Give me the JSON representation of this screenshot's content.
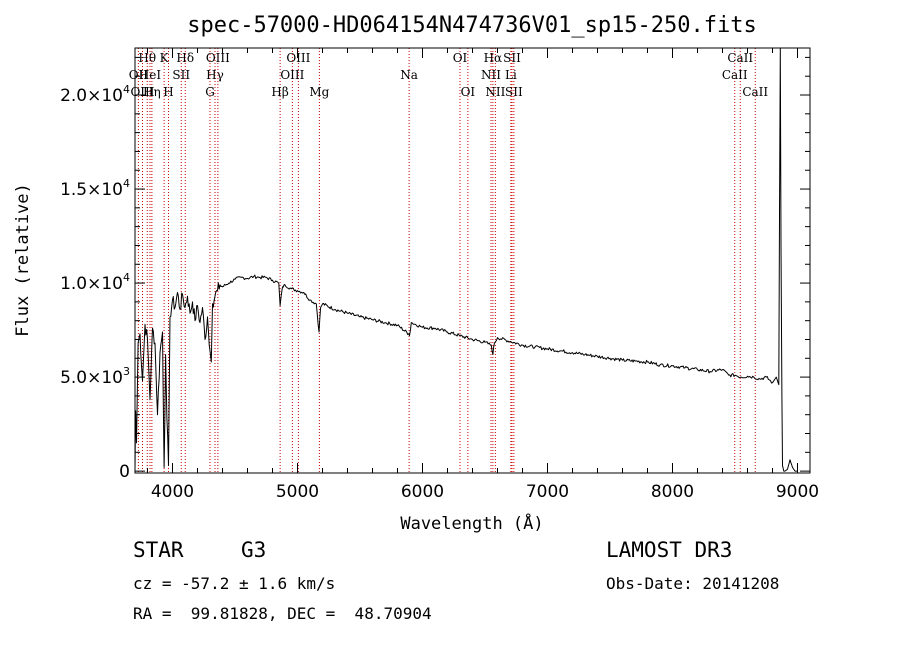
{
  "chart_data": {
    "type": "line",
    "title": "spec-57000-HD064154N474736V01_sp15-250.fits",
    "xlabel": "Wavelength (Å)",
    "ylabel": "Flux (relative)",
    "xlim": [
      3700,
      9100
    ],
    "ylim": [
      -100,
      22500
    ],
    "xticks": [
      4000,
      5000,
      6000,
      7000,
      8000,
      9000
    ],
    "yticks": [
      {
        "value": 0,
        "label": "0"
      },
      {
        "value": 5000,
        "label": "5.0×10",
        "exp": "3"
      },
      {
        "value": 10000,
        "label": "1.0×10",
        "exp": "4"
      },
      {
        "value": 15000,
        "label": "1.5×10",
        "exp": "4"
      },
      {
        "value": 20000,
        "label": "2.0×10",
        "exp": "4"
      }
    ],
    "series": [
      {
        "name": "spectrum",
        "x": [
          3700,
          3705,
          3712,
          3725,
          3740,
          3760,
          3780,
          3800,
          3820,
          3840,
          3860,
          3880,
          3900,
          3920,
          3933,
          3945,
          3955,
          3968,
          3980,
          4000,
          4020,
          4040,
          4060,
          4080,
          4100,
          4120,
          4140,
          4160,
          4180,
          4200,
          4220,
          4240,
          4260,
          4280,
          4300,
          4310,
          4320,
          4340,
          4360,
          4380,
          4400,
          4450,
          4500,
          4550,
          4600,
          4650,
          4700,
          4750,
          4800,
          4850,
          4861,
          4880,
          4900,
          4950,
          5000,
          5050,
          5100,
          5150,
          5172,
          5185,
          5200,
          5300,
          5400,
          5500,
          5600,
          5700,
          5800,
          5890,
          5896,
          5910,
          6000,
          6100,
          6200,
          6300,
          6400,
          6500,
          6550,
          6563,
          6575,
          6600,
          6700,
          6800,
          6900,
          7000,
          7100,
          7200,
          7300,
          7400,
          7500,
          7600,
          7700,
          7800,
          7900,
          8000,
          8100,
          8200,
          8300,
          8400,
          8450,
          8500,
          8550,
          8600,
          8650,
          8700,
          8750,
          8800,
          8830,
          8850,
          8862,
          8868,
          8875,
          8880,
          8890,
          8900,
          8920,
          8940,
          8960,
          8980,
          9000
        ],
        "y": [
          100,
          3200,
          1500,
          6800,
          7300,
          4800,
          7800,
          7000,
          3800,
          7600,
          6800,
          3000,
          6300,
          7400,
          200,
          6200,
          2800,
          300,
          8200,
          9100,
          8700,
          9500,
          8600,
          9400,
          8700,
          9300,
          8400,
          9000,
          8000,
          8800,
          7900,
          8700,
          7000,
          8200,
          6400,
          5800,
          8900,
          9300,
          9600,
          9900,
          9800,
          10000,
          10200,
          10300,
          10250,
          10350,
          10300,
          10300,
          10150,
          10000,
          8800,
          9800,
          9900,
          9700,
          9600,
          9500,
          9100,
          8900,
          7400,
          8700,
          8900,
          8600,
          8400,
          8200,
          8050,
          7900,
          7750,
          7300,
          7200,
          7900,
          7650,
          7600,
          7400,
          7200,
          7000,
          6850,
          6700,
          6200,
          6800,
          7100,
          6900,
          6700,
          6600,
          6500,
          6400,
          6300,
          6200,
          6100,
          6000,
          5900,
          5850,
          5800,
          5650,
          5600,
          5500,
          5400,
          5300,
          5400,
          5100,
          5100,
          5000,
          5050,
          5000,
          4900,
          5000,
          4700,
          5000,
          4600,
          22500,
          12000,
          4000,
          300,
          0,
          0,
          100,
          600,
          200,
          0,
          0
        ]
      }
    ],
    "spectral_lines": [
      {
        "label": "Hθ",
        "wavelength": 3798,
        "row": 1
      },
      {
        "label": "OII",
        "wavelength": 3727,
        "row": 2
      },
      {
        "label": "HeI",
        "wavelength": 3820,
        "row": 2
      },
      {
        "label": "OIII",
        "wavelength": 3760,
        "row": 3
      },
      {
        "label": "Hη",
        "wavelength": 3835,
        "row": 3
      },
      {
        "label": "K",
        "wavelength": 3933,
        "row": 1
      },
      {
        "label": "SII",
        "wavelength": 4070,
        "row": 2
      },
      {
        "label": "H",
        "wavelength": 3968,
        "row": 3
      },
      {
        "label": "Hδ",
        "wavelength": 4102,
        "row": 1
      },
      {
        "label": "OIII",
        "wavelength": 4363,
        "row": 1
      },
      {
        "label": "Hγ",
        "wavelength": 4340,
        "row": 2
      },
      {
        "label": "G",
        "wavelength": 4300,
        "row": 3
      },
      {
        "label": "Hβ",
        "wavelength": 4861,
        "row": 3
      },
      {
        "label": "OIII",
        "wavelength": 5007,
        "row": 1
      },
      {
        "label": "OIII",
        "wavelength": 4959,
        "row": 2
      },
      {
        "label": "Mg",
        "wavelength": 5175,
        "row": 3
      },
      {
        "label": "Na",
        "wavelength": 5893,
        "row": 2
      },
      {
        "label": "OI",
        "wavelength": 6300,
        "row": 1
      },
      {
        "label": "OI",
        "wavelength": 6363,
        "row": 3
      },
      {
        "label": "Hα",
        "wavelength": 6563,
        "row": 1
      },
      {
        "label": "SII",
        "wavelength": 6716,
        "row": 1
      },
      {
        "label": "NII",
        "wavelength": 6548,
        "row": 2
      },
      {
        "label": "Li",
        "wavelength": 6707,
        "row": 2
      },
      {
        "label": "NII",
        "wavelength": 6583,
        "row": 3
      },
      {
        "label": "SII",
        "wavelength": 6731,
        "row": 3
      },
      {
        "label": "CaII",
        "wavelength": 8542,
        "row": 1
      },
      {
        "label": "CaII",
        "wavelength": 8498,
        "row": 2
      },
      {
        "label": "CaII",
        "wavelength": 8662,
        "row": 3
      }
    ],
    "colors": {
      "spectrum": "#000000",
      "line_markers": "#cc0000",
      "axes": "#000000"
    }
  },
  "info": {
    "class_label": "STAR",
    "subclass_label": "G3",
    "survey": "LAMOST DR3",
    "cz": "cz = -57.2 ± 1.6 km/s",
    "obs_date": "Obs-Date: 20141208",
    "coords": "RA =  99.81828, DEC =  48.70904"
  }
}
